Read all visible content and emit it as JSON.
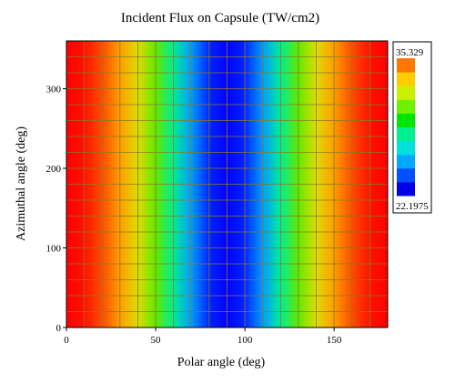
{
  "chart_data": {
    "type": "heatmap",
    "title": "Incident Flux on Capsule (TW/cm2)",
    "xlabel": "Polar angle (deg)",
    "ylabel": "Azimuthal angle (deg)",
    "xlim": [
      0,
      180
    ],
    "ylim": [
      0,
      360
    ],
    "x_ticks": [
      0,
      50,
      100,
      150
    ],
    "y_ticks": [
      0,
      100,
      200,
      300
    ],
    "grid": true,
    "grid_color": "#8a7a2a",
    "value_range": [
      22.1975,
      35.329
    ],
    "colorbar": {
      "max_label": "35.329",
      "min_label": "22.1975",
      "colors": [
        "#0000e6",
        "#0050ff",
        "#00a8ff",
        "#00e0e0",
        "#00f090",
        "#00e600",
        "#70f000",
        "#c8f000",
        "#ffcc00",
        "#ff7700"
      ]
    },
    "colormap": [
      [
        0.0,
        "#0000ff"
      ],
      [
        0.12,
        "#0060ff"
      ],
      [
        0.25,
        "#00ccff"
      ],
      [
        0.35,
        "#00f0b0"
      ],
      [
        0.45,
        "#00e000"
      ],
      [
        0.58,
        "#a8f000"
      ],
      [
        0.7,
        "#ffd000"
      ],
      [
        0.82,
        "#ff8000"
      ],
      [
        1.0,
        "#ff0000"
      ]
    ],
    "profile": {
      "polar_deg": [
        0,
        10,
        20,
        30,
        40,
        50,
        60,
        70,
        80,
        90,
        100,
        110,
        120,
        130,
        140,
        150,
        160,
        170,
        180
      ],
      "flux": [
        35.329,
        35.0,
        33.9,
        32.4,
        30.8,
        29.1,
        27.0,
        24.7,
        22.8,
        22.1975,
        22.8,
        24.7,
        27.0,
        29.1,
        30.8,
        32.4,
        33.9,
        35.0,
        35.329
      ]
    }
  }
}
